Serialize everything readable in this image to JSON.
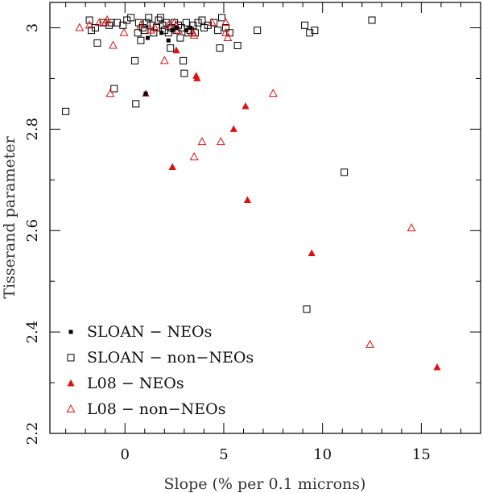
{
  "chart_data": {
    "type": "scatter",
    "title": "",
    "xlabel": "Slope (% per 0.1 microns)",
    "ylabel": "Tisserand parameter",
    "xlim": [
      -3.8,
      18
    ],
    "ylim": [
      2.2,
      3.05
    ],
    "xticks": {
      "major": [
        0,
        5,
        10,
        15
      ],
      "labels": [
        "0",
        "5",
        "10",
        "15"
      ],
      "minor": [
        -3,
        -2,
        -1,
        1,
        2,
        3,
        4,
        6,
        7,
        8,
        9,
        11,
        12,
        13,
        14,
        16,
        17
      ]
    },
    "yticks": {
      "major": [
        2.2,
        2.4,
        2.6,
        2.8,
        3.0
      ],
      "labels": [
        "2.2",
        "2.4",
        "2.6",
        "2.8",
        "3"
      ],
      "minor": [
        2.3,
        2.5,
        2.7,
        2.9
      ]
    },
    "legend_position": "bottom-left",
    "series": [
      {
        "name": "SLOAN − NEOs",
        "marker": "filled-square",
        "color": "#000000",
        "points": [
          [
            1.15,
            2.98
          ],
          [
            1.05,
            2.87
          ],
          [
            2.2,
            2.975
          ],
          [
            1.85,
            2.99
          ],
          [
            2.4,
            2.995
          ],
          [
            2.6,
            3.0
          ],
          [
            3.1,
            2.995
          ],
          [
            3.3,
            3.0
          ]
        ]
      },
      {
        "name": "SLOAN − non−NEOs",
        "marker": "open-square",
        "color": "#000000",
        "points": [
          [
            -3.0,
            2.835
          ],
          [
            -1.8,
            3.015
          ],
          [
            -1.5,
            3.0
          ],
          [
            -1.7,
            2.995
          ],
          [
            -1.4,
            2.97
          ],
          [
            -1.1,
            3.01
          ],
          [
            -0.8,
            3.005
          ],
          [
            -0.7,
            3.01
          ],
          [
            -0.55,
            2.88
          ],
          [
            -0.4,
            3.01
          ],
          [
            -0.1,
            3.005
          ],
          [
            0.1,
            3.015
          ],
          [
            0.3,
            3.02
          ],
          [
            0.5,
            2.935
          ],
          [
            0.55,
            2.85
          ],
          [
            0.65,
            2.99
          ],
          [
            0.7,
            3.01
          ],
          [
            0.8,
            2.975
          ],
          [
            0.9,
            3.0
          ],
          [
            1.0,
            2.995
          ],
          [
            1.1,
            3.01
          ],
          [
            1.2,
            3.02
          ],
          [
            1.3,
            3.005
          ],
          [
            1.45,
            2.99
          ],
          [
            1.6,
            3.0
          ],
          [
            1.7,
            3.015
          ],
          [
            1.8,
            3.02
          ],
          [
            1.9,
            3.005
          ],
          [
            2.0,
            2.995
          ],
          [
            2.1,
            3.01
          ],
          [
            2.2,
            2.99
          ],
          [
            2.3,
            2.96
          ],
          [
            2.35,
            3.0
          ],
          [
            2.5,
            3.01
          ],
          [
            2.6,
            2.995
          ],
          [
            2.7,
            3.005
          ],
          [
            2.8,
            2.98
          ],
          [
            2.85,
            3.0
          ],
          [
            2.95,
            2.935
          ],
          [
            3.0,
            2.91
          ],
          [
            3.1,
            3.01
          ],
          [
            3.2,
            2.99
          ],
          [
            3.3,
            2.995
          ],
          [
            3.45,
            3.005
          ],
          [
            3.55,
            2.99
          ],
          [
            3.7,
            3.01
          ],
          [
            3.9,
            3.015
          ],
          [
            4.0,
            3.0
          ],
          [
            4.2,
            3.005
          ],
          [
            4.5,
            3.01
          ],
          [
            4.7,
            2.995
          ],
          [
            4.8,
            2.96
          ],
          [
            4.9,
            3.02
          ],
          [
            5.1,
            3.0
          ],
          [
            5.3,
            2.99
          ],
          [
            5.7,
            2.965
          ],
          [
            6.7,
            2.995
          ],
          [
            9.1,
            3.005
          ],
          [
            9.35,
            2.99
          ],
          [
            9.6,
            2.995
          ],
          [
            11.1,
            2.715
          ],
          [
            12.5,
            3.015
          ],
          [
            9.2,
            2.445
          ]
        ]
      },
      {
        "name": "L08 − NEOs",
        "marker": "filled-triangle",
        "color": "#e01010",
        "points": [
          [
            1.05,
            2.87
          ],
          [
            2.4,
            2.725
          ],
          [
            2.6,
            2.955
          ],
          [
            3.6,
            2.905
          ],
          [
            3.65,
            2.9
          ],
          [
            5.5,
            2.8
          ],
          [
            6.1,
            2.845
          ],
          [
            6.2,
            2.66
          ],
          [
            9.45,
            2.555
          ],
          [
            15.8,
            2.33
          ]
        ]
      },
      {
        "name": "L08 − non−NEOs",
        "marker": "open-triangle",
        "color": "#e01010",
        "points": [
          [
            -2.3,
            3.0
          ],
          [
            -1.8,
            3.005
          ],
          [
            -1.3,
            3.01
          ],
          [
            -0.9,
            3.015
          ],
          [
            -1.0,
            3.01
          ],
          [
            -0.6,
            2.965
          ],
          [
            -0.75,
            2.87
          ],
          [
            -0.05,
            2.99
          ],
          [
            0.8,
            3.005
          ],
          [
            1.3,
            2.995
          ],
          [
            1.5,
            3.0
          ],
          [
            2.0,
            2.935
          ],
          [
            2.2,
            3.005
          ],
          [
            2.5,
            3.01
          ],
          [
            2.7,
            2.995
          ],
          [
            3.4,
            2.99
          ],
          [
            3.5,
            2.985
          ],
          [
            3.5,
            2.745
          ],
          [
            3.9,
            2.775
          ],
          [
            4.4,
            3.01
          ],
          [
            4.85,
            2.775
          ],
          [
            5.1,
            2.99
          ],
          [
            5.2,
            2.98
          ],
          [
            5.1,
            3.01
          ],
          [
            7.5,
            2.87
          ],
          [
            12.4,
            2.375
          ],
          [
            14.5,
            2.605
          ]
        ]
      }
    ]
  }
}
